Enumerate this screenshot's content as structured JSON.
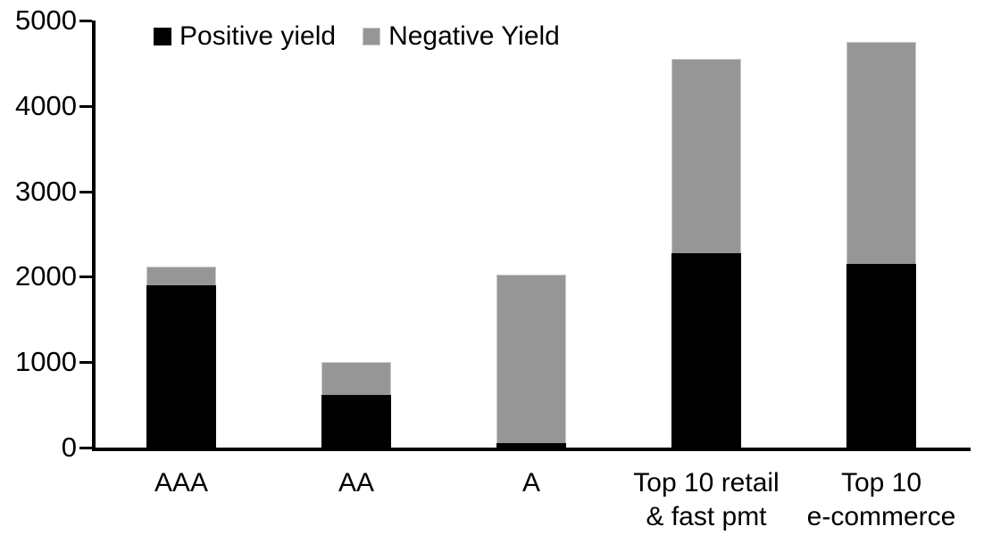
{
  "legend": {
    "items": [
      {
        "label": "Positive yield",
        "color": "#000000"
      },
      {
        "label": "Negative Yield",
        "color": "#969696"
      }
    ]
  },
  "chart_data": {
    "type": "bar",
    "stacked": true,
    "title": "",
    "xlabel": "",
    "ylabel": "",
    "categories": [
      "AAA",
      "AA",
      "A",
      "Top 10 retail & fast pmt",
      "Top 10 e-commerce"
    ],
    "category_label_lines": [
      [
        "AAA"
      ],
      [
        "AA"
      ],
      [
        "A"
      ],
      [
        "Top 10 retail",
        "& fast pmt"
      ],
      [
        "Top 10",
        "e-commerce"
      ]
    ],
    "series": [
      {
        "name": "Positive yield",
        "color": "#000000",
        "values": [
          1900,
          620,
          50,
          2280,
          2150
        ]
      },
      {
        "name": "Negative Yield",
        "color": "#969696",
        "values": [
          220,
          380,
          1980,
          2270,
          2600
        ]
      }
    ],
    "stack_totals": [
      2120,
      1000,
      2030,
      4550,
      4750
    ],
    "ylim": [
      0,
      5000
    ],
    "yticks": [
      0,
      1000,
      2000,
      3000,
      4000,
      5000
    ],
    "grid": false,
    "legend_position": "top",
    "colors": {
      "positive": "#000000",
      "negative": "#969696",
      "negative_border": "#c9c9c9",
      "axis": "#000000",
      "background": "#ffffff"
    }
  }
}
